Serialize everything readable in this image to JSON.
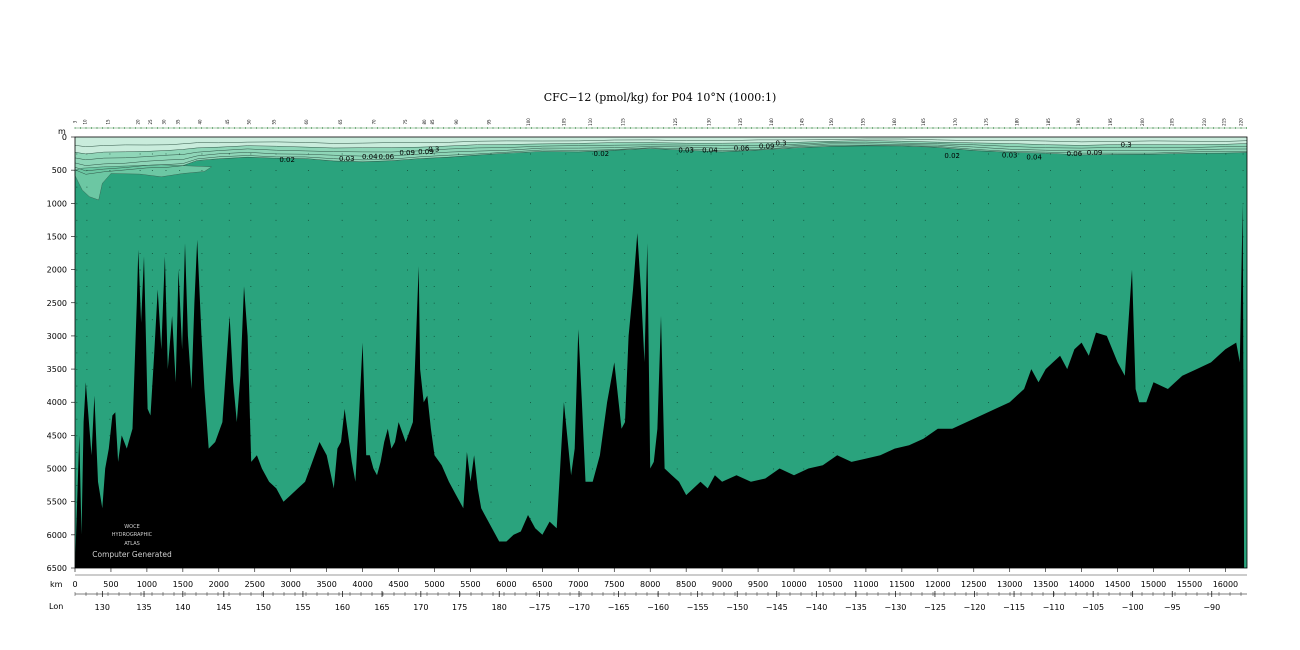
{
  "chart_data": {
    "type": "area",
    "title": "CFC−12 (pmol/kg) for P04 10°N (1000:1)",
    "depth_unit_label": "m",
    "distance_unit_label": "km",
    "lon_label": "Lon",
    "xlim": [
      0,
      16300
    ],
    "ylim": [
      0,
      6500
    ],
    "y_ticks": [
      0,
      500,
      1000,
      1500,
      2000,
      2500,
      3000,
      3500,
      4000,
      4500,
      5000,
      5500,
      6000,
      6500
    ],
    "x_ticks": [
      0,
      500,
      1000,
      1500,
      2000,
      2500,
      3000,
      3500,
      4000,
      4500,
      5000,
      5500,
      6000,
      6500,
      7000,
      7500,
      8000,
      8500,
      9000,
      9500,
      10000,
      10500,
      11000,
      11500,
      12000,
      12500,
      13000,
      13500,
      14000,
      14500,
      15000,
      15500,
      16000
    ],
    "lon_ticks": [
      {
        "km": 380,
        "label": "130"
      },
      {
        "km": 960,
        "label": "135"
      },
      {
        "km": 1500,
        "label": "140"
      },
      {
        "km": 2070,
        "label": "145"
      },
      {
        "km": 2620,
        "label": "150"
      },
      {
        "km": 3170,
        "label": "155"
      },
      {
        "km": 3720,
        "label": "160"
      },
      {
        "km": 4270,
        "label": "165"
      },
      {
        "km": 4810,
        "label": "170"
      },
      {
        "km": 5350,
        "label": "175"
      },
      {
        "km": 5900,
        "label": "180"
      },
      {
        "km": 6460,
        "label": "−175"
      },
      {
        "km": 7010,
        "label": "−170"
      },
      {
        "km": 7560,
        "label": "−165"
      },
      {
        "km": 8110,
        "label": "−160"
      },
      {
        "km": 8660,
        "label": "−155"
      },
      {
        "km": 9210,
        "label": "−150"
      },
      {
        "km": 9760,
        "label": "−145"
      },
      {
        "km": 10310,
        "label": "−140"
      },
      {
        "km": 10860,
        "label": "−135"
      },
      {
        "km": 11410,
        "label": "−130"
      },
      {
        "km": 11960,
        "label": "−125"
      },
      {
        "km": 12510,
        "label": "−120"
      },
      {
        "km": 13060,
        "label": "−115"
      },
      {
        "km": 13610,
        "label": "−110"
      },
      {
        "km": 14160,
        "label": "−105"
      },
      {
        "km": 14710,
        "label": "−100"
      },
      {
        "km": 15260,
        "label": "−95"
      },
      {
        "km": 15810,
        "label": "−90"
      }
    ],
    "station_labels": [
      {
        "km": 20,
        "label": "3"
      },
      {
        "km": 160,
        "label": "10"
      },
      {
        "km": 480,
        "label": "15"
      },
      {
        "km": 900,
        "label": "20"
      },
      {
        "km": 1070,
        "label": "25"
      },
      {
        "km": 1260,
        "label": "30"
      },
      {
        "km": 1450,
        "label": "35"
      },
      {
        "km": 1760,
        "label": "40"
      },
      {
        "km": 2140,
        "label": "45"
      },
      {
        "km": 2440,
        "label": "50"
      },
      {
        "km": 2790,
        "label": "55"
      },
      {
        "km": 3240,
        "label": "60"
      },
      {
        "km": 3710,
        "label": "65"
      },
      {
        "km": 4180,
        "label": "70"
      },
      {
        "km": 4620,
        "label": "75"
      },
      {
        "km": 4880,
        "label": "80"
      },
      {
        "km": 4990,
        "label": "85"
      },
      {
        "km": 5330,
        "label": "90"
      },
      {
        "km": 5780,
        "label": "95"
      },
      {
        "km": 6330,
        "label": "100"
      },
      {
        "km": 6820,
        "label": "105"
      },
      {
        "km": 7190,
        "label": "110"
      },
      {
        "km": 7640,
        "label": "115"
      },
      {
        "km": 8370,
        "label": "125"
      },
      {
        "km": 8840,
        "label": "130"
      },
      {
        "km": 9280,
        "label": "135"
      },
      {
        "km": 9710,
        "label": "140"
      },
      {
        "km": 10130,
        "label": "145"
      },
      {
        "km": 10540,
        "label": "150"
      },
      {
        "km": 10980,
        "label": "155"
      },
      {
        "km": 11420,
        "label": "160"
      },
      {
        "km": 11820,
        "label": "165"
      },
      {
        "km": 12270,
        "label": "170"
      },
      {
        "km": 12700,
        "label": "175"
      },
      {
        "km": 13120,
        "label": "180"
      },
      {
        "km": 13560,
        "label": "185"
      },
      {
        "km": 13980,
        "label": "190"
      },
      {
        "km": 14420,
        "label": "195"
      },
      {
        "km": 14870,
        "label": "200"
      },
      {
        "km": 15280,
        "label": "205"
      },
      {
        "km": 15730,
        "label": "210"
      },
      {
        "km": 16000,
        "label": "215"
      },
      {
        "km": 16240,
        "label": "220"
      }
    ],
    "contour_labels": [
      {
        "km": 2950,
        "depth": 380,
        "label": "0.02"
      },
      {
        "km": 3780,
        "depth": 360,
        "label": "0.03"
      },
      {
        "km": 4100,
        "depth": 330,
        "label": "0.04"
      },
      {
        "km": 4330,
        "depth": 330,
        "label": "0.06"
      },
      {
        "km": 4620,
        "depth": 270,
        "label": "0.09"
      },
      {
        "km": 4880,
        "depth": 260,
        "label": "0.09"
      },
      {
        "km": 4990,
        "depth": 220,
        "label": "0.3"
      },
      {
        "km": 7320,
        "depth": 290,
        "label": "0.02"
      },
      {
        "km": 8500,
        "depth": 230,
        "label": "0.03"
      },
      {
        "km": 8830,
        "depth": 230,
        "label": "0.04"
      },
      {
        "km": 9270,
        "depth": 200,
        "label": "0.06"
      },
      {
        "km": 9620,
        "depth": 170,
        "label": "0.09"
      },
      {
        "km": 9820,
        "depth": 130,
        "label": "0.3"
      },
      {
        "km": 12200,
        "depth": 320,
        "label": "0.02"
      },
      {
        "km": 13000,
        "depth": 310,
        "label": "0.03"
      },
      {
        "km": 13340,
        "depth": 340,
        "label": "0.04"
      },
      {
        "km": 13900,
        "depth": 290,
        "label": "0.06"
      },
      {
        "km": 14180,
        "depth": 270,
        "label": "0.09"
      },
      {
        "km": 14620,
        "depth": 150,
        "label": "0.3"
      }
    ],
    "surface_layer": [
      [
        0,
        500
      ],
      [
        150,
        560
      ],
      [
        400,
        520
      ],
      [
        700,
        500
      ],
      [
        1000,
        470
      ],
      [
        1300,
        450
      ],
      [
        1500,
        430
      ],
      [
        1700,
        360
      ],
      [
        2000,
        330
      ],
      [
        2400,
        300
      ],
      [
        2800,
        320
      ],
      [
        3200,
        330
      ],
      [
        3600,
        360
      ],
      [
        4000,
        370
      ],
      [
        4400,
        360
      ],
      [
        4800,
        330
      ],
      [
        5200,
        300
      ],
      [
        5600,
        270
      ],
      [
        6000,
        250
      ],
      [
        6500,
        220
      ],
      [
        7000,
        220
      ],
      [
        7500,
        200
      ],
      [
        8000,
        180
      ],
      [
        8500,
        200
      ],
      [
        9000,
        220
      ],
      [
        9500,
        200
      ],
      [
        10000,
        170
      ],
      [
        10500,
        140
      ],
      [
        11000,
        130
      ],
      [
        11500,
        140
      ],
      [
        12000,
        160
      ],
      [
        12500,
        200
      ],
      [
        13000,
        230
      ],
      [
        13500,
        250
      ],
      [
        14000,
        270
      ],
      [
        14500,
        260
      ],
      [
        15000,
        260
      ],
      [
        15500,
        250
      ],
      [
        16000,
        240
      ],
      [
        16300,
        230
      ]
    ],
    "deep_blob": [
      [
        0,
        580
      ],
      [
        100,
        800
      ],
      [
        200,
        900
      ],
      [
        330,
        950
      ],
      [
        380,
        700
      ],
      [
        500,
        550
      ],
      [
        900,
        560
      ],
      [
        1200,
        600
      ],
      [
        1500,
        550
      ],
      [
        1800,
        520
      ],
      [
        1900,
        450
      ],
      [
        1200,
        420
      ],
      [
        400,
        450
      ],
      [
        100,
        470
      ],
      [
        0,
        500
      ]
    ],
    "bathymetry": [
      [
        0,
        6500
      ],
      [
        60,
        4500
      ],
      [
        90,
        6000
      ],
      [
        120,
        4300
      ],
      [
        150,
        3700
      ],
      [
        180,
        4100
      ],
      [
        230,
        4800
      ],
      [
        270,
        3900
      ],
      [
        320,
        5200
      ],
      [
        380,
        5600
      ],
      [
        420,
        5000
      ],
      [
        470,
        4700
      ],
      [
        520,
        4200
      ],
      [
        560,
        4150
      ],
      [
        600,
        4900
      ],
      [
        650,
        4500
      ],
      [
        720,
        4700
      ],
      [
        800,
        4400
      ],
      [
        860,
        2500
      ],
      [
        880,
        1700
      ],
      [
        920,
        2800
      ],
      [
        960,
        1800
      ],
      [
        1010,
        4100
      ],
      [
        1050,
        4200
      ],
      [
        1100,
        3300
      ],
      [
        1150,
        2300
      ],
      [
        1200,
        3200
      ],
      [
        1250,
        1800
      ],
      [
        1290,
        3500
      ],
      [
        1350,
        2700
      ],
      [
        1400,
        3700
      ],
      [
        1440,
        2000
      ],
      [
        1490,
        3200
      ],
      [
        1530,
        1600
      ],
      [
        1570,
        3000
      ],
      [
        1620,
        3800
      ],
      [
        1660,
        2500
      ],
      [
        1700,
        1550
      ],
      [
        1760,
        3000
      ],
      [
        1800,
        3800
      ],
      [
        1860,
        4700
      ],
      [
        1950,
        4600
      ],
      [
        2050,
        4300
      ],
      [
        2100,
        3500
      ],
      [
        2150,
        2700
      ],
      [
        2200,
        3700
      ],
      [
        2250,
        4300
      ],
      [
        2300,
        3600
      ],
      [
        2350,
        2250
      ],
      [
        2400,
        3000
      ],
      [
        2450,
        4900
      ],
      [
        2530,
        4800
      ],
      [
        2600,
        5000
      ],
      [
        2700,
        5200
      ],
      [
        2800,
        5300
      ],
      [
        2900,
        5500
      ],
      [
        3000,
        5400
      ],
      [
        3100,
        5300
      ],
      [
        3200,
        5200
      ],
      [
        3300,
        4900
      ],
      [
        3400,
        4600
      ],
      [
        3500,
        4800
      ],
      [
        3600,
        5300
      ],
      [
        3650,
        4700
      ],
      [
        3700,
        4600
      ],
      [
        3750,
        4100
      ],
      [
        3800,
        4500
      ],
      [
        3850,
        4900
      ],
      [
        3900,
        5200
      ],
      [
        3950,
        4200
      ],
      [
        4000,
        3100
      ],
      [
        4050,
        4800
      ],
      [
        4100,
        4800
      ],
      [
        4150,
        5000
      ],
      [
        4200,
        5100
      ],
      [
        4250,
        4900
      ],
      [
        4300,
        4600
      ],
      [
        4350,
        4400
      ],
      [
        4400,
        4700
      ],
      [
        4450,
        4600
      ],
      [
        4500,
        4300
      ],
      [
        4600,
        4600
      ],
      [
        4700,
        4300
      ],
      [
        4780,
        1950
      ],
      [
        4800,
        3500
      ],
      [
        4850,
        4000
      ],
      [
        4900,
        3900
      ],
      [
        4950,
        4400
      ],
      [
        5000,
        4800
      ],
      [
        5100,
        4950
      ],
      [
        5200,
        5200
      ],
      [
        5300,
        5400
      ],
      [
        5400,
        5600
      ],
      [
        5450,
        4750
      ],
      [
        5500,
        5200
      ],
      [
        5550,
        4800
      ],
      [
        5600,
        5300
      ],
      [
        5650,
        5600
      ],
      [
        5700,
        5700
      ],
      [
        5800,
        5900
      ],
      [
        5900,
        6100
      ],
      [
        6000,
        6100
      ],
      [
        6100,
        6000
      ],
      [
        6200,
        5950
      ],
      [
        6300,
        5700
      ],
      [
        6400,
        5900
      ],
      [
        6500,
        6000
      ],
      [
        6600,
        5800
      ],
      [
        6700,
        5900
      ],
      [
        6800,
        4000
      ],
      [
        6900,
        5100
      ],
      [
        6950,
        4700
      ],
      [
        7000,
        2900
      ],
      [
        7050,
        4000
      ],
      [
        7100,
        5200
      ],
      [
        7200,
        5200
      ],
      [
        7300,
        4800
      ],
      [
        7400,
        4000
      ],
      [
        7500,
        3400
      ],
      [
        7600,
        4400
      ],
      [
        7650,
        4300
      ],
      [
        7700,
        3000
      ],
      [
        7760,
        2300
      ],
      [
        7820,
        1450
      ],
      [
        7870,
        2300
      ],
      [
        7920,
        3400
      ],
      [
        7960,
        1600
      ],
      [
        8000,
        5000
      ],
      [
        8050,
        4900
      ],
      [
        8100,
        4400
      ],
      [
        8150,
        2700
      ],
      [
        8200,
        5000
      ],
      [
        8300,
        5100
      ],
      [
        8400,
        5200
      ],
      [
        8500,
        5400
      ],
      [
        8600,
        5300
      ],
      [
        8700,
        5200
      ],
      [
        8800,
        5300
      ],
      [
        8900,
        5100
      ],
      [
        9000,
        5200
      ],
      [
        9200,
        5100
      ],
      [
        9400,
        5200
      ],
      [
        9600,
        5150
      ],
      [
        9800,
        5000
      ],
      [
        10000,
        5100
      ],
      [
        10200,
        5000
      ],
      [
        10400,
        4950
      ],
      [
        10600,
        4800
      ],
      [
        10800,
        4900
      ],
      [
        11000,
        4850
      ],
      [
        11200,
        4800
      ],
      [
        11400,
        4700
      ],
      [
        11600,
        4650
      ],
      [
        11800,
        4550
      ],
      [
        12000,
        4400
      ],
      [
        12200,
        4400
      ],
      [
        12400,
        4300
      ],
      [
        12600,
        4200
      ],
      [
        12800,
        4100
      ],
      [
        13000,
        4000
      ],
      [
        13200,
        3800
      ],
      [
        13300,
        3500
      ],
      [
        13400,
        3700
      ],
      [
        13500,
        3500
      ],
      [
        13600,
        3400
      ],
      [
        13700,
        3300
      ],
      [
        13800,
        3500
      ],
      [
        13900,
        3200
      ],
      [
        14000,
        3100
      ],
      [
        14100,
        3300
      ],
      [
        14200,
        2950
      ],
      [
        14350,
        3000
      ],
      [
        14500,
        3400
      ],
      [
        14600,
        3600
      ],
      [
        14700,
        2000
      ],
      [
        14750,
        3800
      ],
      [
        14800,
        4000
      ],
      [
        14900,
        4000
      ],
      [
        15000,
        3700
      ],
      [
        15200,
        3800
      ],
      [
        15400,
        3600
      ],
      [
        15600,
        3500
      ],
      [
        15800,
        3400
      ],
      [
        16000,
        3200
      ],
      [
        16150,
        3100
      ],
      [
        16200,
        3400
      ],
      [
        16240,
        1000
      ],
      [
        16260,
        6500
      ],
      [
        16300,
        6500
      ]
    ],
    "watermark": [
      "WOCE",
      "HYDROGRAPHIC",
      "ATLAS",
      "Computer Generated"
    ]
  }
}
